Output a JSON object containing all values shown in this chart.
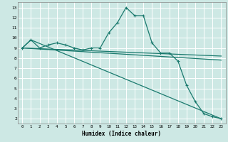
{
  "xlabel": "Humidex (Indice chaleur)",
  "background_color": "#cde8e4",
  "grid_color": "#ffffff",
  "line_color": "#1a7a6e",
  "xlim": [
    -0.5,
    23.5
  ],
  "ylim": [
    1.5,
    13.5
  ],
  "xticks": [
    0,
    1,
    2,
    3,
    4,
    5,
    6,
    7,
    8,
    9,
    10,
    11,
    12,
    13,
    14,
    15,
    16,
    17,
    18,
    19,
    20,
    21,
    22,
    23
  ],
  "yticks": [
    2,
    3,
    4,
    5,
    6,
    7,
    8,
    9,
    10,
    11,
    12,
    13
  ],
  "line1_x": [
    0,
    1,
    2,
    3,
    4,
    5,
    6,
    7,
    8,
    9,
    10,
    11,
    12,
    13,
    14,
    15,
    16,
    17,
    18,
    19,
    20,
    21,
    22,
    23
  ],
  "line1_y": [
    9.0,
    9.8,
    9.0,
    9.3,
    9.5,
    9.3,
    9.0,
    8.8,
    9.0,
    9.0,
    10.5,
    11.5,
    13.0,
    12.2,
    12.2,
    9.5,
    8.5,
    8.5,
    7.7,
    5.3,
    3.7,
    2.5,
    2.2,
    2.0
  ],
  "line2_x": [
    0,
    1,
    23
  ],
  "line2_y": [
    9.0,
    9.8,
    2.0
  ],
  "line3_x": [
    0,
    23
  ],
  "line3_y": [
    9.0,
    8.2
  ],
  "line4_x": [
    0,
    23
  ],
  "line4_y": [
    9.0,
    7.8
  ]
}
